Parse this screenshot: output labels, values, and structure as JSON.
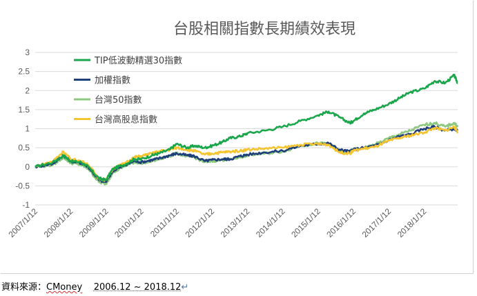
{
  "chart_data": {
    "type": "line",
    "title": "台股相關指數長期績效表現",
    "xlabel": "",
    "ylabel": "",
    "ylim": [
      -1,
      3
    ],
    "yticks": [
      "3",
      "2.5",
      "2",
      "1.5",
      "1",
      "0.5",
      "0",
      "-0.5",
      "-1"
    ],
    "xticks": [
      "2007/1/12",
      "2008/1/12",
      "2009/1/12",
      "2010/1/12",
      "2011/1/12",
      "2012/1/12",
      "2013/1/12",
      "2014/1/12",
      "2015/1/12",
      "2016/1/12",
      "2017/1/12",
      "2018/1/12"
    ],
    "grid": "horizontal",
    "legend_position": "top-left",
    "x": [
      2007.0,
      2007.5,
      2007.8,
      2008.0,
      2008.3,
      2008.5,
      2008.8,
      2009.0,
      2009.2,
      2009.5,
      2009.8,
      2010.0,
      2010.3,
      2010.5,
      2010.8,
      2011.0,
      2011.3,
      2011.5,
      2011.8,
      2012.0,
      2012.3,
      2012.5,
      2012.8,
      2013.0,
      2013.5,
      2014.0,
      2014.5,
      2015.0,
      2015.3,
      2015.6,
      2015.9,
      2016.0,
      2016.3,
      2016.6,
      2017.0,
      2017.3,
      2017.6,
      2018.0,
      2018.3,
      2018.6,
      2018.85,
      2018.95
    ],
    "series": [
      {
        "name": "TIP低波動精選30指數",
        "color": "#1aa64a",
        "values": [
          0.0,
          0.12,
          0.3,
          0.15,
          0.12,
          0.0,
          -0.3,
          -0.35,
          -0.05,
          0.05,
          0.2,
          0.2,
          0.3,
          0.35,
          0.45,
          0.6,
          0.5,
          0.55,
          0.5,
          0.55,
          0.65,
          0.75,
          0.8,
          0.88,
          0.95,
          1.05,
          1.2,
          1.35,
          1.45,
          1.3,
          1.15,
          1.2,
          1.4,
          1.5,
          1.65,
          1.8,
          1.95,
          2.05,
          2.25,
          2.2,
          2.4,
          2.2
        ]
      },
      {
        "name": "加權指數",
        "color": "#1f3f7a",
        "values": [
          0.0,
          0.08,
          0.3,
          0.15,
          0.1,
          0.0,
          -0.35,
          -0.4,
          -0.1,
          0.02,
          0.15,
          0.12,
          0.18,
          0.22,
          0.3,
          0.35,
          0.3,
          0.28,
          0.15,
          0.18,
          0.2,
          0.2,
          0.28,
          0.32,
          0.38,
          0.42,
          0.55,
          0.6,
          0.62,
          0.45,
          0.4,
          0.45,
          0.5,
          0.55,
          0.7,
          0.8,
          0.85,
          1.0,
          1.05,
          0.95,
          1.0,
          0.95
        ]
      },
      {
        "name": "台灣50指數",
        "color": "#8cc97f",
        "values": [
          0.0,
          0.05,
          0.25,
          0.1,
          0.05,
          -0.05,
          -0.4,
          -0.45,
          -0.15,
          0.0,
          0.12,
          0.1,
          0.15,
          0.2,
          0.28,
          0.35,
          0.28,
          0.25,
          0.12,
          0.15,
          0.18,
          0.2,
          0.25,
          0.3,
          0.35,
          0.4,
          0.55,
          0.62,
          0.6,
          0.42,
          0.38,
          0.45,
          0.5,
          0.58,
          0.75,
          0.85,
          0.95,
          1.1,
          1.15,
          1.05,
          1.15,
          1.05
        ]
      },
      {
        "name": "台灣高股息指數",
        "color": "#f5c431",
        "values": [
          0.0,
          0.15,
          0.4,
          0.2,
          0.15,
          0.05,
          -0.3,
          -0.35,
          -0.05,
          0.08,
          0.25,
          0.28,
          0.35,
          0.4,
          0.45,
          0.5,
          0.45,
          0.42,
          0.32,
          0.35,
          0.38,
          0.4,
          0.42,
          0.45,
          0.48,
          0.5,
          0.58,
          0.6,
          0.58,
          0.38,
          0.35,
          0.42,
          0.48,
          0.52,
          0.68,
          0.75,
          0.82,
          0.9,
          1.02,
          0.95,
          1.05,
          0.92
        ]
      }
    ]
  },
  "source": {
    "prefix": "資料來源：",
    "name": "CMoney",
    "gap": "    ",
    "range": "2006.12 ~ 2018.12",
    "mark": "↵"
  }
}
